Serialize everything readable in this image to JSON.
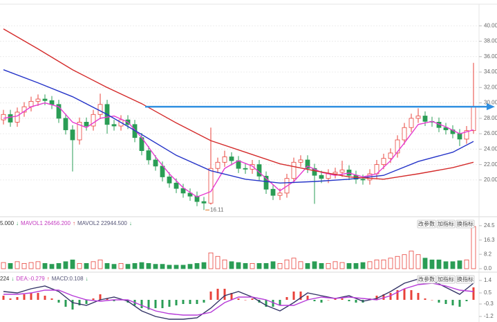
{
  "chart_data": [
    {
      "type": "candlestick",
      "open": [
        27.8,
        28.5,
        27.5,
        28.8,
        29.5,
        30.2,
        30.5,
        30.3,
        29.8,
        28.0,
        26.5,
        25.2,
        27.5,
        27.0,
        28.5,
        29.8,
        27.2,
        27.0,
        27.8,
        27.2,
        25.5,
        23.8,
        22.6,
        21.8,
        20.4,
        19.6,
        18.9,
        18.3,
        17.9,
        17.2,
        17.0,
        21.5,
        22.3,
        23.0,
        22.5,
        21.5,
        21.4,
        22.0,
        20.5,
        18.8,
        18.0,
        18.3,
        20.2,
        22.3,
        22.6,
        21.5,
        20.6,
        20.2,
        20.8,
        21.0,
        21.3,
        20.6,
        20.1,
        20.0,
        20.8,
        22.0,
        22.8,
        23.5,
        25.2,
        26.8,
        28.0,
        28.3,
        27.6,
        27.5,
        26.8,
        26.5,
        26.0,
        25.3,
        26.4
      ],
      "high": [
        29.1,
        29.1,
        29.4,
        30.1,
        30.8,
        31.1,
        31.1,
        30.9,
        30.4,
        28.6,
        27.1,
        28.1,
        28.1,
        29.1,
        31.2,
        30.4,
        27.8,
        28.4,
        28.4,
        27.8,
        26.1,
        24.4,
        23.2,
        22.4,
        21.0,
        20.2,
        19.5,
        18.9,
        18.5,
        17.8,
        26.8,
        22.9,
        23.8,
        23.6,
        23.1,
        22.1,
        22.6,
        22.6,
        21.1,
        19.4,
        18.9,
        20.8,
        22.9,
        23.2,
        23.2,
        22.1,
        21.2,
        21.4,
        21.6,
        22.5,
        21.9,
        21.2,
        20.7,
        21.4,
        22.6,
        23.4,
        24.1,
        25.8,
        27.4,
        28.6,
        29.3,
        28.9,
        28.2,
        28.1,
        27.4,
        27.1,
        26.6,
        27.0,
        35.2
      ],
      "low": [
        27.2,
        26.9,
        26.9,
        28.2,
        28.9,
        29.6,
        29.7,
        29.2,
        27.4,
        25.9,
        21.1,
        24.6,
        26.4,
        26.4,
        27.9,
        26.0,
        26.4,
        26.4,
        26.6,
        24.9,
        23.2,
        22.0,
        21.2,
        19.8,
        19.0,
        18.3,
        17.7,
        17.3,
        16.6,
        16.11,
        16.8,
        20.9,
        21.7,
        21.9,
        20.9,
        20.8,
        20.8,
        19.9,
        18.2,
        17.4,
        17.4,
        17.7,
        19.6,
        21.7,
        20.9,
        16.9,
        19.6,
        19.6,
        20.2,
        20.4,
        20.0,
        19.5,
        19.4,
        19.4,
        20.2,
        21.4,
        22.2,
        22.9,
        24.6,
        26.2,
        27.4,
        27.0,
        26.9,
        26.2,
        25.9,
        25.4,
        24.4,
        24.7,
        26.0
      ],
      "close": [
        28.5,
        27.5,
        28.8,
        29.5,
        30.2,
        30.5,
        30.3,
        29.8,
        28.0,
        26.5,
        25.2,
        27.5,
        27.0,
        28.5,
        29.8,
        27.2,
        27.0,
        27.8,
        27.2,
        25.5,
        23.8,
        22.6,
        21.8,
        20.4,
        19.6,
        18.9,
        18.3,
        17.9,
        17.2,
        17.0,
        21.5,
        22.3,
        23.0,
        22.5,
        21.5,
        21.4,
        22.0,
        20.5,
        18.8,
        18.0,
        18.3,
        20.2,
        22.3,
        22.6,
        21.5,
        20.6,
        20.2,
        20.8,
        21.0,
        21.3,
        20.6,
        20.1,
        20.0,
        20.8,
        22.0,
        22.8,
        23.5,
        25.2,
        26.8,
        28.0,
        28.3,
        27.6,
        27.5,
        26.8,
        26.5,
        26.0,
        25.3,
        26.4,
        29.5
      ],
      "up_color": "#e8413a",
      "down_color": "#2a9d55",
      "series": [
        {
          "color": "#e63ad0",
          "x": [
            0,
            2,
            4,
            6,
            8,
            10,
            12,
            14,
            16,
            18,
            20,
            22,
            24,
            26,
            28,
            30,
            32,
            34,
            36,
            38,
            40,
            42,
            44,
            46,
            48,
            50,
            52,
            54,
            56,
            58,
            60,
            62,
            64,
            66,
            68
          ],
          "values": [
            28.0,
            28.3,
            29.5,
            30.0,
            29.5,
            27.5,
            26.8,
            28.0,
            28.3,
            27.5,
            25.5,
            23.0,
            20.8,
            19.0,
            17.8,
            18.5,
            21.5,
            22.5,
            21.8,
            20.2,
            18.6,
            19.8,
            21.8,
            21.0,
            20.6,
            20.9,
            20.4,
            20.8,
            22.5,
            24.8,
            27.2,
            27.6,
            26.9,
            26.0,
            26.5
          ]
        },
        {
          "color": "#2433c8",
          "x": [
            0,
            5,
            10,
            15,
            20,
            25,
            30,
            35,
            40,
            45,
            50,
            55,
            60,
            65,
            68
          ],
          "values": [
            34.3,
            32.6,
            30.8,
            28.5,
            25.9,
            23.2,
            21.2,
            20.1,
            19.6,
            19.8,
            20.1,
            20.6,
            22.4,
            23.6,
            25.0
          ]
        },
        {
          "color": "#d42a2a",
          "x": [
            0,
            5,
            10,
            15,
            20,
            25,
            30,
            35,
            40,
            45,
            50,
            55,
            60,
            65,
            68
          ],
          "values": [
            39.6,
            37.0,
            34.3,
            32.0,
            29.9,
            27.4,
            25.1,
            23.6,
            22.1,
            21.2,
            20.4,
            20.1,
            20.8,
            21.6,
            22.3
          ]
        }
      ],
      "arrow_level": 29.5,
      "arrow_color": "#2f8fe0",
      "ylim": [
        15.5,
        42
      ],
      "yticks": [
        {
          "value": 40,
          "label": "40.00"
        },
        {
          "value": 38,
          "label": "38.00"
        },
        {
          "value": 36,
          "label": "36.00"
        },
        {
          "value": 34,
          "label": "34.00"
        },
        {
          "value": 32,
          "label": "32.00"
        },
        {
          "value": 30,
          "label": "30.00"
        },
        {
          "value": 28,
          "label": "28.00"
        },
        {
          "value": 26,
          "label": "26.00"
        },
        {
          "value": 24,
          "label": "24.00"
        },
        {
          "value": 22,
          "label": "22.00"
        },
        {
          "value": 20,
          "label": "20.00"
        }
      ],
      "grid": true
    },
    {
      "type": "bar",
      "values": [
        3.5,
        3,
        4,
        3,
        3.5,
        4,
        3,
        2.5,
        3,
        4,
        5,
        3,
        3,
        4,
        5,
        3,
        2.5,
        3,
        2.5,
        3,
        3.5,
        3,
        2.5,
        2.5,
        2,
        2,
        2,
        2.5,
        3,
        3.5,
        9,
        7,
        5,
        4,
        3.5,
        3,
        3,
        3,
        3,
        4,
        3,
        5,
        6,
        4,
        3,
        4,
        3,
        3,
        4,
        3.5,
        3,
        3,
        3.5,
        4,
        5,
        5,
        6,
        7,
        8,
        10,
        8,
        6,
        5,
        5,
        4,
        4,
        4.5,
        5,
        24
      ],
      "legend": [
        {
          "text": "5.000",
          "color": "#333333"
        },
        {
          "text": "↓",
          "color": "#2a9d55"
        },
        {
          "text": "MAVOL1 26456.200",
          "color": "#c43ac0"
        },
        {
          "text": "↑",
          "color": "#e8413a"
        },
        {
          "text": "MAVOL2 22944.500",
          "color": "#555577"
        },
        {
          "text": "↓",
          "color": "#2a9d55"
        }
      ],
      "buttons": [
        "改参数",
        "加指标",
        "换指标"
      ],
      "ylim": [
        0,
        27.6
      ],
      "yticks": [
        24.5,
        16.3,
        8.2,
        {
          "value": 0,
          "label": "0.0"
        }
      ]
    },
    {
      "type": "macd",
      "values": [
        0.3,
        0.1,
        0.2,
        0.4,
        0.5,
        0.5,
        0.3,
        0.1,
        -0.2,
        -0.5,
        -0.7,
        -0.4,
        -0.3,
        0.1,
        0.4,
        0.1,
        -0.1,
        0.0,
        -0.2,
        -0.4,
        -0.6,
        -0.7,
        -0.6,
        -0.6,
        -0.5,
        -0.4,
        -0.3,
        -0.3,
        -0.3,
        -0.2,
        0.6,
        0.8,
        0.8,
        0.5,
        0.1,
        0.0,
        0.1,
        -0.2,
        -0.5,
        -0.5,
        -0.4,
        0.2,
        0.6,
        0.6,
        0.3,
        -0.1,
        -0.2,
        0.0,
        0.1,
        0.1,
        -0.1,
        -0.2,
        -0.2,
        0.1,
        0.3,
        0.4,
        0.5,
        0.7,
        0.8,
        0.7,
        0.5,
        0.1,
        0.0,
        -0.2,
        -0.3,
        -0.4,
        -0.5,
        -0.1,
        0.9
      ],
      "up_color": "#e8413a",
      "down_color": "#2a9d55",
      "series": [
        {
          "color": "#333366",
          "x": [
            0,
            2,
            4,
            6,
            8,
            10,
            12,
            14,
            16,
            18,
            20,
            22,
            24,
            26,
            28,
            30,
            32,
            34,
            36,
            38,
            40,
            42,
            44,
            46,
            48,
            50,
            52,
            54,
            56,
            58,
            60,
            62,
            64,
            66,
            68
          ],
          "values": [
            0.6,
            0.5,
            0.8,
            1.0,
            0.6,
            -0.2,
            -0.4,
            0.0,
            0.2,
            -0.1,
            -0.8,
            -1.2,
            -1.4,
            -1.4,
            -1.3,
            -0.6,
            0.3,
            0.6,
            0.2,
            -0.4,
            -0.8,
            -0.2,
            0.5,
            0.3,
            0.1,
            0.3,
            -0.1,
            0.1,
            0.6,
            1.2,
            1.5,
            1.4,
            0.9,
            0.4,
            1.2
          ]
        },
        {
          "color": "#b63ad8",
          "x": [
            0,
            2,
            4,
            6,
            8,
            10,
            12,
            14,
            16,
            18,
            20,
            22,
            24,
            26,
            28,
            30,
            32,
            34,
            36,
            38,
            40,
            42,
            44,
            46,
            48,
            50,
            52,
            54,
            56,
            58,
            60,
            62,
            64,
            66,
            68
          ],
          "values": [
            0.4,
            0.4,
            0.5,
            0.7,
            0.7,
            0.3,
            0.0,
            -0.1,
            0.0,
            0.0,
            -0.4,
            -0.8,
            -1.0,
            -1.1,
            -1.1,
            -0.9,
            -0.2,
            0.2,
            0.2,
            0.0,
            -0.4,
            -0.4,
            0.0,
            0.2,
            0.1,
            0.2,
            0.1,
            0.0,
            0.3,
            0.8,
            1.1,
            1.2,
            1.0,
            0.7,
            0.6
          ]
        }
      ],
      "legend": [
        {
          "text": "224",
          "color": "#333333"
        },
        {
          "text": "↓",
          "color": "#2a9d55"
        },
        {
          "text": "DEA:-0.279",
          "color": "#c43ac0"
        },
        {
          "text": "↑",
          "color": "#e8413a"
        },
        {
          "text": "MACD:0.108",
          "color": "#555577"
        },
        {
          "text": "↓",
          "color": "#2a9d55"
        }
      ],
      "buttons": [
        "改参数",
        "加指标",
        "换指标"
      ],
      "ylim": [
        -1.45,
        1.75
      ],
      "yticks": [
        1.4,
        0.5,
        -0.3,
        -1.2
      ]
    }
  ]
}
